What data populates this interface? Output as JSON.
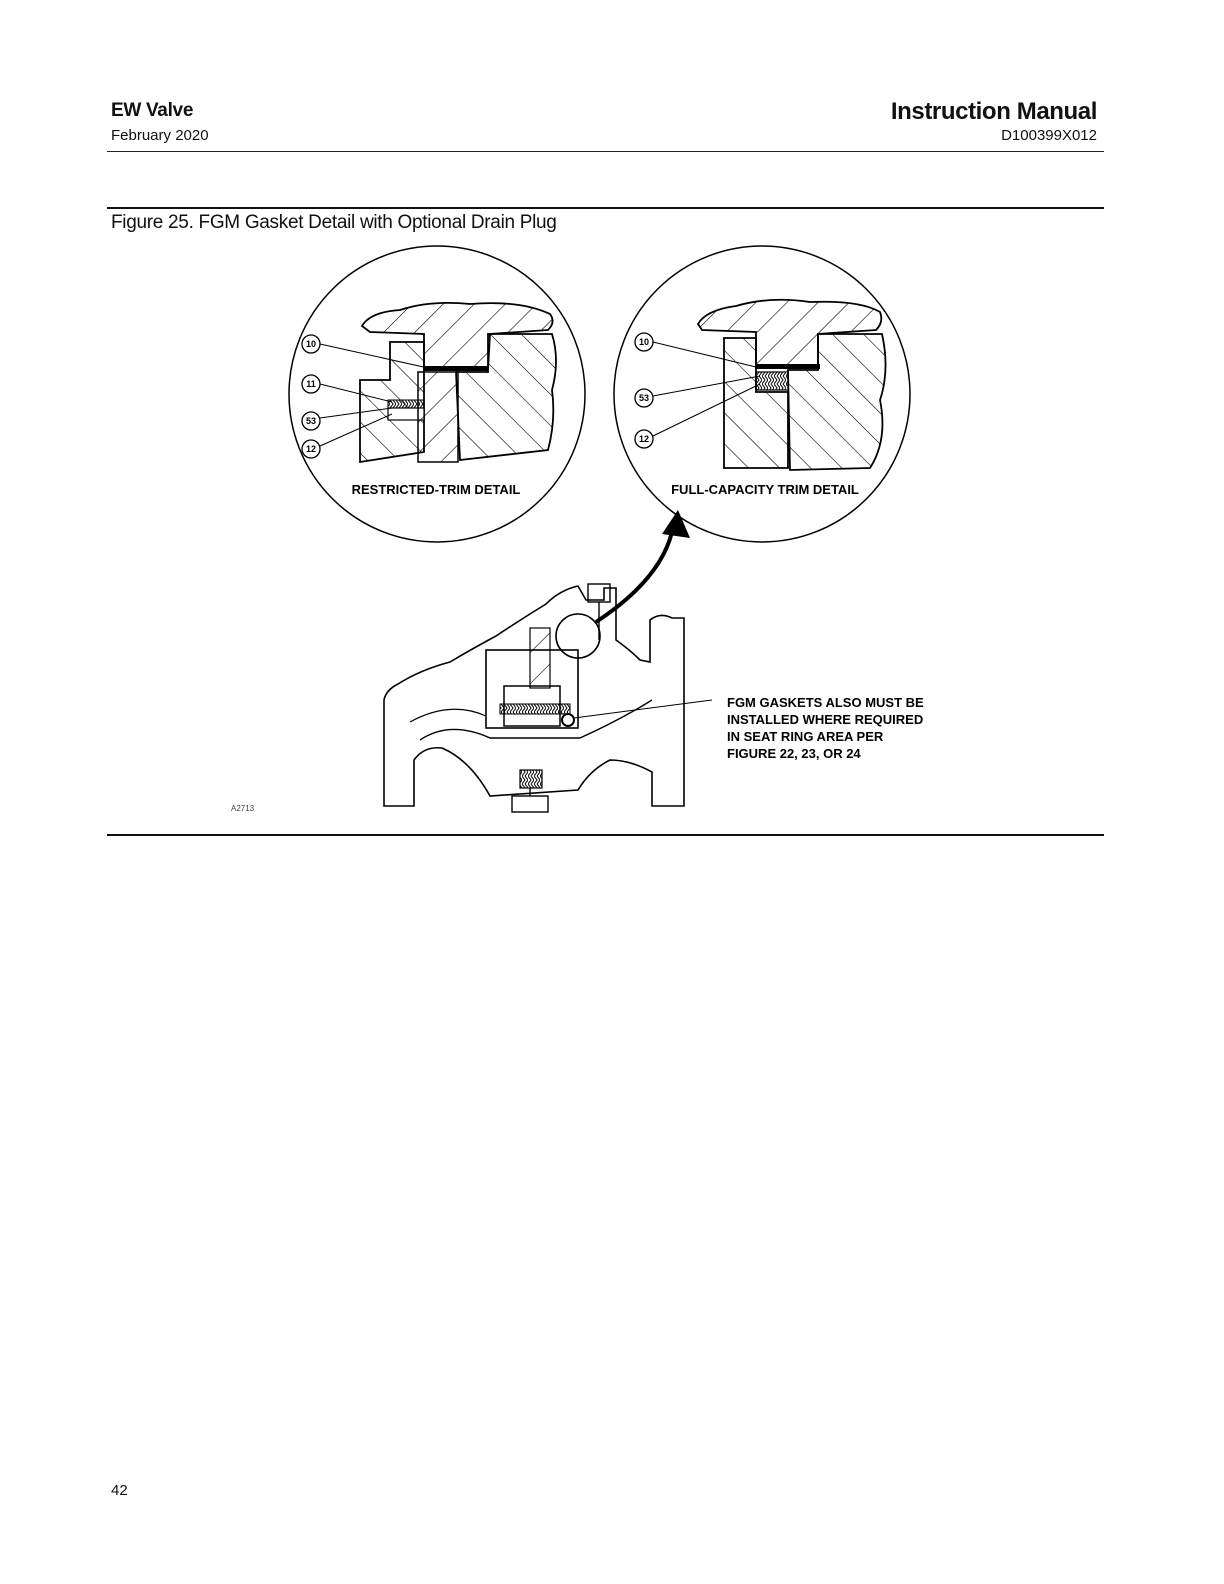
{
  "header": {
    "product": "EW Valve",
    "date": "February 2020",
    "doc_type": "Instruction Manual",
    "doc_number": "D100399X012"
  },
  "figure": {
    "caption": "Figure 25. FGM Gasket Detail with Optional Drain Plug",
    "left_detail_label": "RESTRICTED-TRIM DETAIL",
    "right_detail_label": "FULL-CAPACITY TRIM DETAIL",
    "left_callouts": [
      "10",
      "11",
      "53",
      "12"
    ],
    "right_callouts": [
      "10",
      "53",
      "12"
    ],
    "note_lines": [
      "FGM GASKETS ALSO MUST BE",
      "INSTALLED WHERE REQUIRED",
      "IN SEAT RING AREA PER",
      "FIGURE 22, 23, OR 24"
    ],
    "drawing_id": "A2713"
  },
  "footer": {
    "page_number": "42"
  }
}
